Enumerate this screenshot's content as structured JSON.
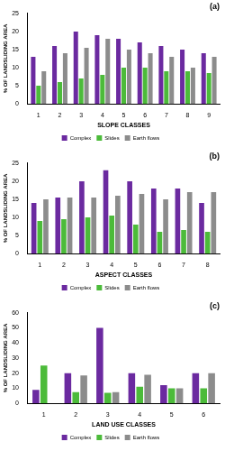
{
  "chart_data": [
    {
      "type": "bar",
      "title": "(a)",
      "x_label": "SLOPE CLASSES",
      "y_label": "% OF LANDSLIDING AREA",
      "categories": [
        "1",
        "2",
        "3",
        "4",
        "5",
        "6",
        "7",
        "8",
        "9"
      ],
      "series": [
        {
          "name": "Complex",
          "color": "#6b2aa0",
          "values": [
            13,
            16,
            20,
            19,
            18,
            17,
            16,
            15,
            14
          ]
        },
        {
          "name": "Slides",
          "color": "#4cbb3a",
          "values": [
            5,
            6,
            7,
            8,
            10,
            10,
            9,
            9,
            8.5
          ]
        },
        {
          "name": "Earth flows",
          "color": "#8c8c8c",
          "values": [
            9,
            14,
            15.5,
            18,
            15,
            14,
            13,
            10,
            13
          ]
        }
      ],
      "ylim": [
        0,
        25
      ],
      "yticks": [
        0,
        5,
        10,
        15,
        20,
        25
      ],
      "grid": false,
      "legend": "bottom"
    },
    {
      "type": "bar",
      "title": "(b)",
      "x_label": "ASPECT CLASSES",
      "y_label": "% OF LANDSLIDING AREA",
      "categories": [
        "1",
        "2",
        "3",
        "4",
        "5",
        "6",
        "7",
        "8"
      ],
      "series": [
        {
          "name": "Complex",
          "color": "#6b2aa0",
          "values": [
            14,
            15.5,
            20,
            23,
            20,
            18,
            18,
            14
          ]
        },
        {
          "name": "Slides",
          "color": "#4cbb3a",
          "values": [
            9,
            9.5,
            10,
            10.5,
            8,
            6,
            6.5,
            6
          ]
        },
        {
          "name": "Earth flows",
          "color": "#8c8c8c",
          "values": [
            15,
            15.5,
            15.5,
            16,
            16.5,
            15,
            17,
            17
          ]
        }
      ],
      "ylim": [
        0,
        25
      ],
      "yticks": [
        0,
        5,
        10,
        15,
        20,
        25
      ],
      "grid": false,
      "legend": "bottom"
    },
    {
      "type": "bar",
      "title": "(c)",
      "x_label": "LAND USE CLASSES",
      "y_label": "% OF LANDSLIDING AREA",
      "categories": [
        "1",
        "2",
        "3",
        "4",
        "5",
        "6"
      ],
      "series": [
        {
          "name": "Complex",
          "color": "#6b2aa0",
          "values": [
            9,
            20,
            50,
            20,
            12,
            20
          ]
        },
        {
          "name": "Slides",
          "color": "#4cbb3a",
          "values": [
            25,
            7.5,
            7,
            11,
            10,
            10
          ]
        },
        {
          "name": "Earth flows",
          "color": "#8c8c8c",
          "values": [
            null,
            18.5,
            7.5,
            19,
            10,
            20
          ]
        }
      ],
      "ylim": [
        0,
        60
      ],
      "yticks": [
        0,
        10,
        20,
        30,
        40,
        50,
        60
      ],
      "grid": false,
      "legend": "bottom"
    }
  ]
}
